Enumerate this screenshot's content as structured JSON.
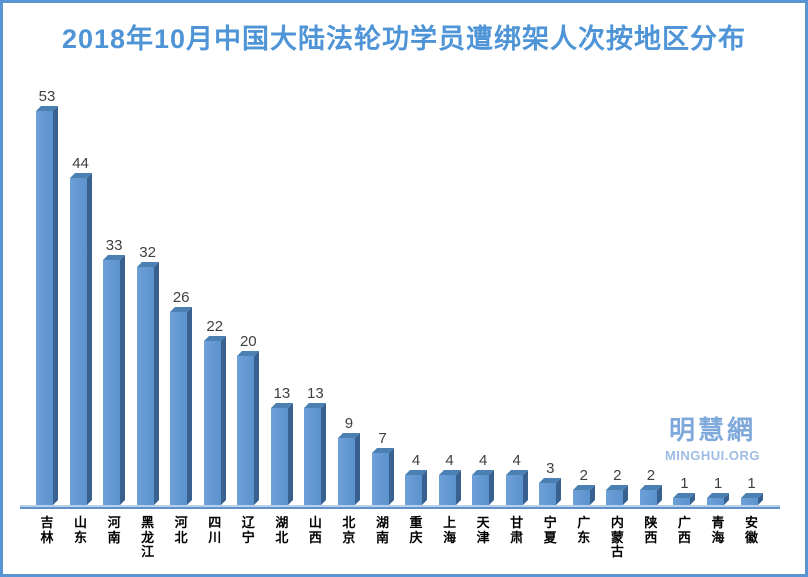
{
  "frame": {
    "border_color": "#5b94d2",
    "background_color": "#ffffff"
  },
  "chart_data": {
    "type": "bar",
    "bar_style": "3d-column",
    "title": "2018年10月中国大陆法轮功学员遭绑架人次按地区分布",
    "categories": [
      "吉林",
      "山东",
      "河南",
      "黑龙江",
      "河北",
      "四川",
      "辽宁",
      "湖北",
      "山西",
      "北京",
      "湖南",
      "重庆",
      "上海",
      "天津",
      "甘肃",
      "宁夏",
      "广东",
      "内蒙古",
      "陕西",
      "广西",
      "青海",
      "安徽"
    ],
    "values": [
      53,
      44,
      33,
      32,
      26,
      22,
      20,
      13,
      13,
      9,
      7,
      4,
      4,
      4,
      4,
      3,
      2,
      2,
      2,
      1,
      1,
      1
    ],
    "xlabel": "",
    "ylabel": "",
    "ylim": [
      0,
      56
    ],
    "grid": false,
    "legend": false,
    "y_axis_visible": false,
    "x_tick_label_orientation": "vertical",
    "value_labels_shown": true,
    "colors": {
      "title": "#4e94d6",
      "bar_front": "#5b92cd",
      "bar_front_light": "#6fa0d8",
      "bar_side": "#38618f",
      "bar_top": "#4d80b2",
      "value_label": "#3f3f3f",
      "category_label": "#000000",
      "axis_line_light": "#b7d0ec",
      "axis_line_dark": "#6190ca"
    }
  },
  "watermark": {
    "line1": "明慧網",
    "line2": "MINGHUI.ORG",
    "color1": "#7fa9db",
    "color2": "#9dbde4"
  }
}
